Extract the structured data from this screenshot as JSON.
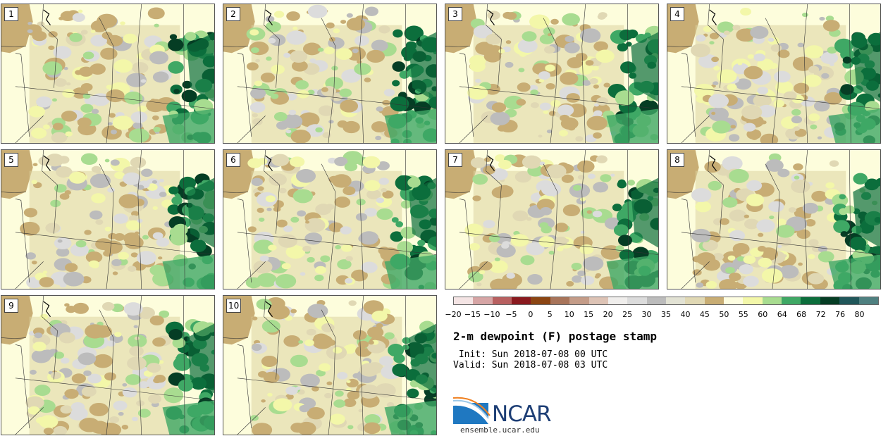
{
  "title": "2-m dewpoint (F) postage stamp",
  "init": " Init: Sun 2018-07-08 00 UTC",
  "valid": "Valid: Sun 2018-07-08 03 UTC",
  "logo": {
    "name": "NCAR",
    "url": "ensemble.ucar.edu"
  },
  "panels": [
    {
      "label": "1"
    },
    {
      "label": "2"
    },
    {
      "label": "3"
    },
    {
      "label": "4"
    },
    {
      "label": "5"
    },
    {
      "label": "6"
    },
    {
      "label": "7"
    },
    {
      "label": "8"
    },
    {
      "label": "9"
    },
    {
      "label": "10"
    }
  ],
  "colorbar": {
    "colors": [
      "#f4e4e4",
      "#d6a5a5",
      "#b86060",
      "#8a1a1f",
      "#8b4513",
      "#a8745a",
      "#c49c88",
      "#ddc3b5",
      "#f0eeec",
      "#dcdcdc",
      "#bcbcbc",
      "#e2e2d4",
      "#e0d8b4",
      "#c8ad74",
      "#fdfde0",
      "#f3f7a9",
      "#a8dc90",
      "#3fa865",
      "#0c6e3c",
      "#053d24",
      "#20575a",
      "#4f8080"
    ],
    "ticks": [
      "−20",
      "−15",
      "−10",
      "−5",
      "0",
      "5",
      "10",
      "15",
      "20",
      "25",
      "30",
      "35",
      "40",
      "45",
      "50",
      "55",
      "60",
      "64",
      "68",
      "72",
      "76",
      "80"
    ]
  }
}
